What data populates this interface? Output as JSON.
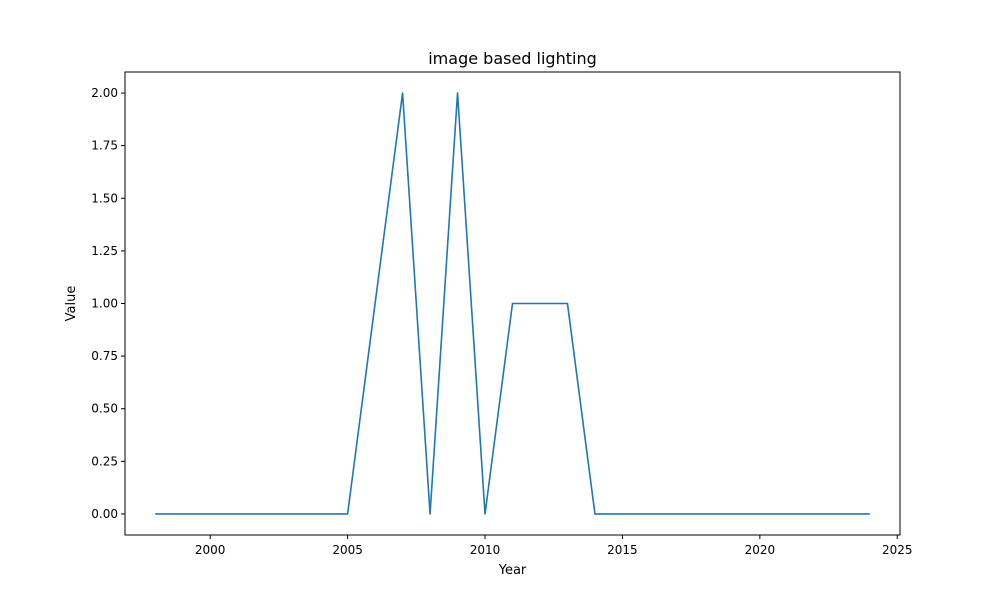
{
  "chart_data": {
    "type": "line",
    "title": "image based lighting",
    "xlabel": "Year",
    "ylabel": "Value",
    "xlim": [
      1996.9,
      2025.1
    ],
    "ylim": [
      -0.1,
      2.1
    ],
    "xticks": [
      2000,
      2005,
      2010,
      2015,
      2020,
      2025
    ],
    "xtick_labels": [
      "2000",
      "2005",
      "2010",
      "2015",
      "2020",
      "2025"
    ],
    "yticks": [
      0,
      0.25,
      0.5,
      0.75,
      1.0,
      1.25,
      1.5,
      1.75,
      2.0
    ],
    "ytick_labels": [
      "0.00",
      "0.25",
      "0.50",
      "0.75",
      "1.00",
      "1.25",
      "1.50",
      "1.75",
      "2.00"
    ],
    "grid": false,
    "series": [
      {
        "color": "#1f77b4",
        "x": [
          1998,
          1999,
          2000,
          2001,
          2002,
          2003,
          2004,
          2005,
          2006,
          2007,
          2008,
          2009,
          2010,
          2011,
          2012,
          2013,
          2014,
          2015,
          2016,
          2017,
          2018,
          2019,
          2020,
          2021,
          2022,
          2023,
          2024
        ],
        "values": [
          0,
          0,
          0,
          0,
          0,
          0,
          0,
          0,
          1,
          2,
          0,
          2,
          0,
          1,
          1,
          1,
          0,
          0,
          0,
          0,
          0,
          0,
          0,
          0,
          0,
          0,
          0
        ]
      }
    ]
  }
}
